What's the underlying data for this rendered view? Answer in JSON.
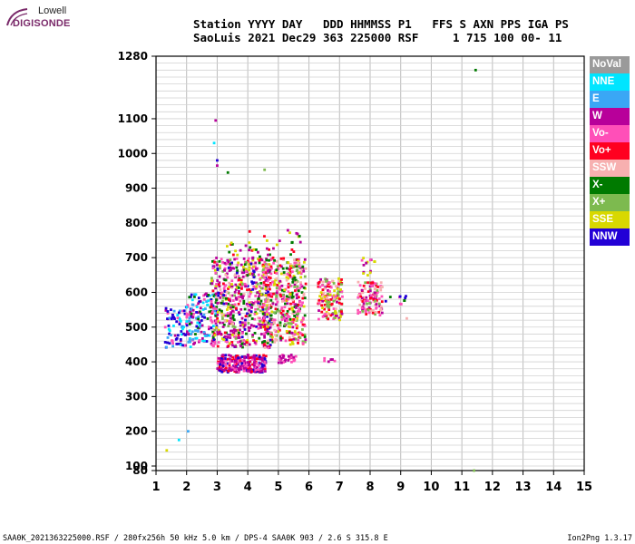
{
  "logo": {
    "top": "Lowell",
    "bottom": "DIGISONDE"
  },
  "header": {
    "line1": "Station YYYY DAY   DDD HHMMSS P1   FFS S AXN PPS IGA PS",
    "line2": "SaoLuis 2021 Dec29 363 225000 RSF     1 715 100 00- 11"
  },
  "legend": [
    {
      "label": "NoVal",
      "color": "#9a9a9a"
    },
    {
      "label": "NNE",
      "color": "#00e5ff"
    },
    {
      "label": "E",
      "color": "#3aa7f5"
    },
    {
      "label": "W",
      "color": "#b8009a"
    },
    {
      "label": "Vo-",
      "color": "#ff4fb8"
    },
    {
      "label": "Vo+",
      "color": "#ff0020"
    },
    {
      "label": "SSW",
      "color": "#f7b0b0"
    },
    {
      "label": "X-",
      "color": "#007a00"
    },
    {
      "label": "X+",
      "color": "#7dba4f"
    },
    {
      "label": "SSE",
      "color": "#d8d800"
    },
    {
      "label": "NNW",
      "color": "#2200d6"
    }
  ],
  "chart_data": {
    "type": "scatter",
    "xlabel": "",
    "ylabel": "",
    "x_ticks": [
      "1",
      "2",
      "3",
      "4",
      "5",
      "6",
      "7",
      "8",
      "9",
      "10",
      "11",
      "12",
      "13",
      "14",
      "15"
    ],
    "y_ticks": [
      "80",
      "100",
      "200",
      "300",
      "400",
      "500",
      "600",
      "700",
      "800",
      "900",
      "1000",
      "1100",
      "1280"
    ],
    "xlim": [
      1,
      15
    ],
    "ylim": [
      80,
      1280
    ],
    "grid": true
  },
  "footer": {
    "left": "SAA0K_2021363225000.RSF / 280fx256h 50 kHz 5.0 km / DPS-4 SAA0K 903 / 2.6 S 315.8 E",
    "right": "Ion2Png 1.3.17"
  }
}
